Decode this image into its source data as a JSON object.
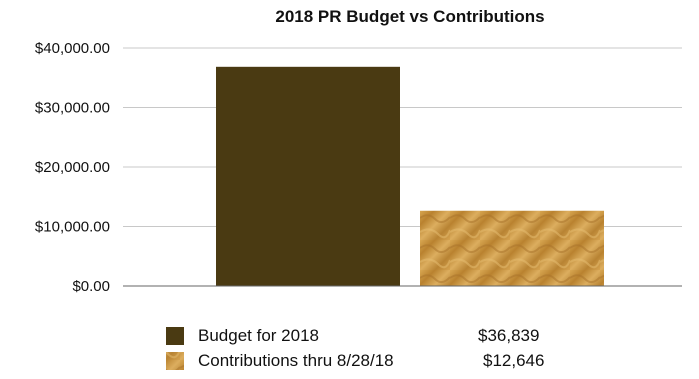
{
  "chart_data": {
    "type": "bar",
    "title": "2018 PR Budget vs Contributions",
    "xlabel": "",
    "ylabel": "",
    "categories": [
      "Budget for 2018",
      "Contributions thru 8/28/18"
    ],
    "values": [
      36839,
      12646
    ],
    "ylim": [
      0,
      40000
    ],
    "yticks": [
      0,
      10000,
      20000,
      30000,
      40000
    ],
    "ytick_labels": [
      "$0.00",
      "$10,000.00",
      "$20,000.00",
      "$30,000.00",
      "$40,000.00"
    ],
    "grid": true,
    "legend_position": "bottom",
    "legend": [
      {
        "label": "Budget for 2018",
        "value_label": "$36,839",
        "color": "#4a3a12"
      },
      {
        "label": "Contributions thru 8/28/18",
        "value_label": "$12,646",
        "color": "#c8963f"
      }
    ]
  }
}
